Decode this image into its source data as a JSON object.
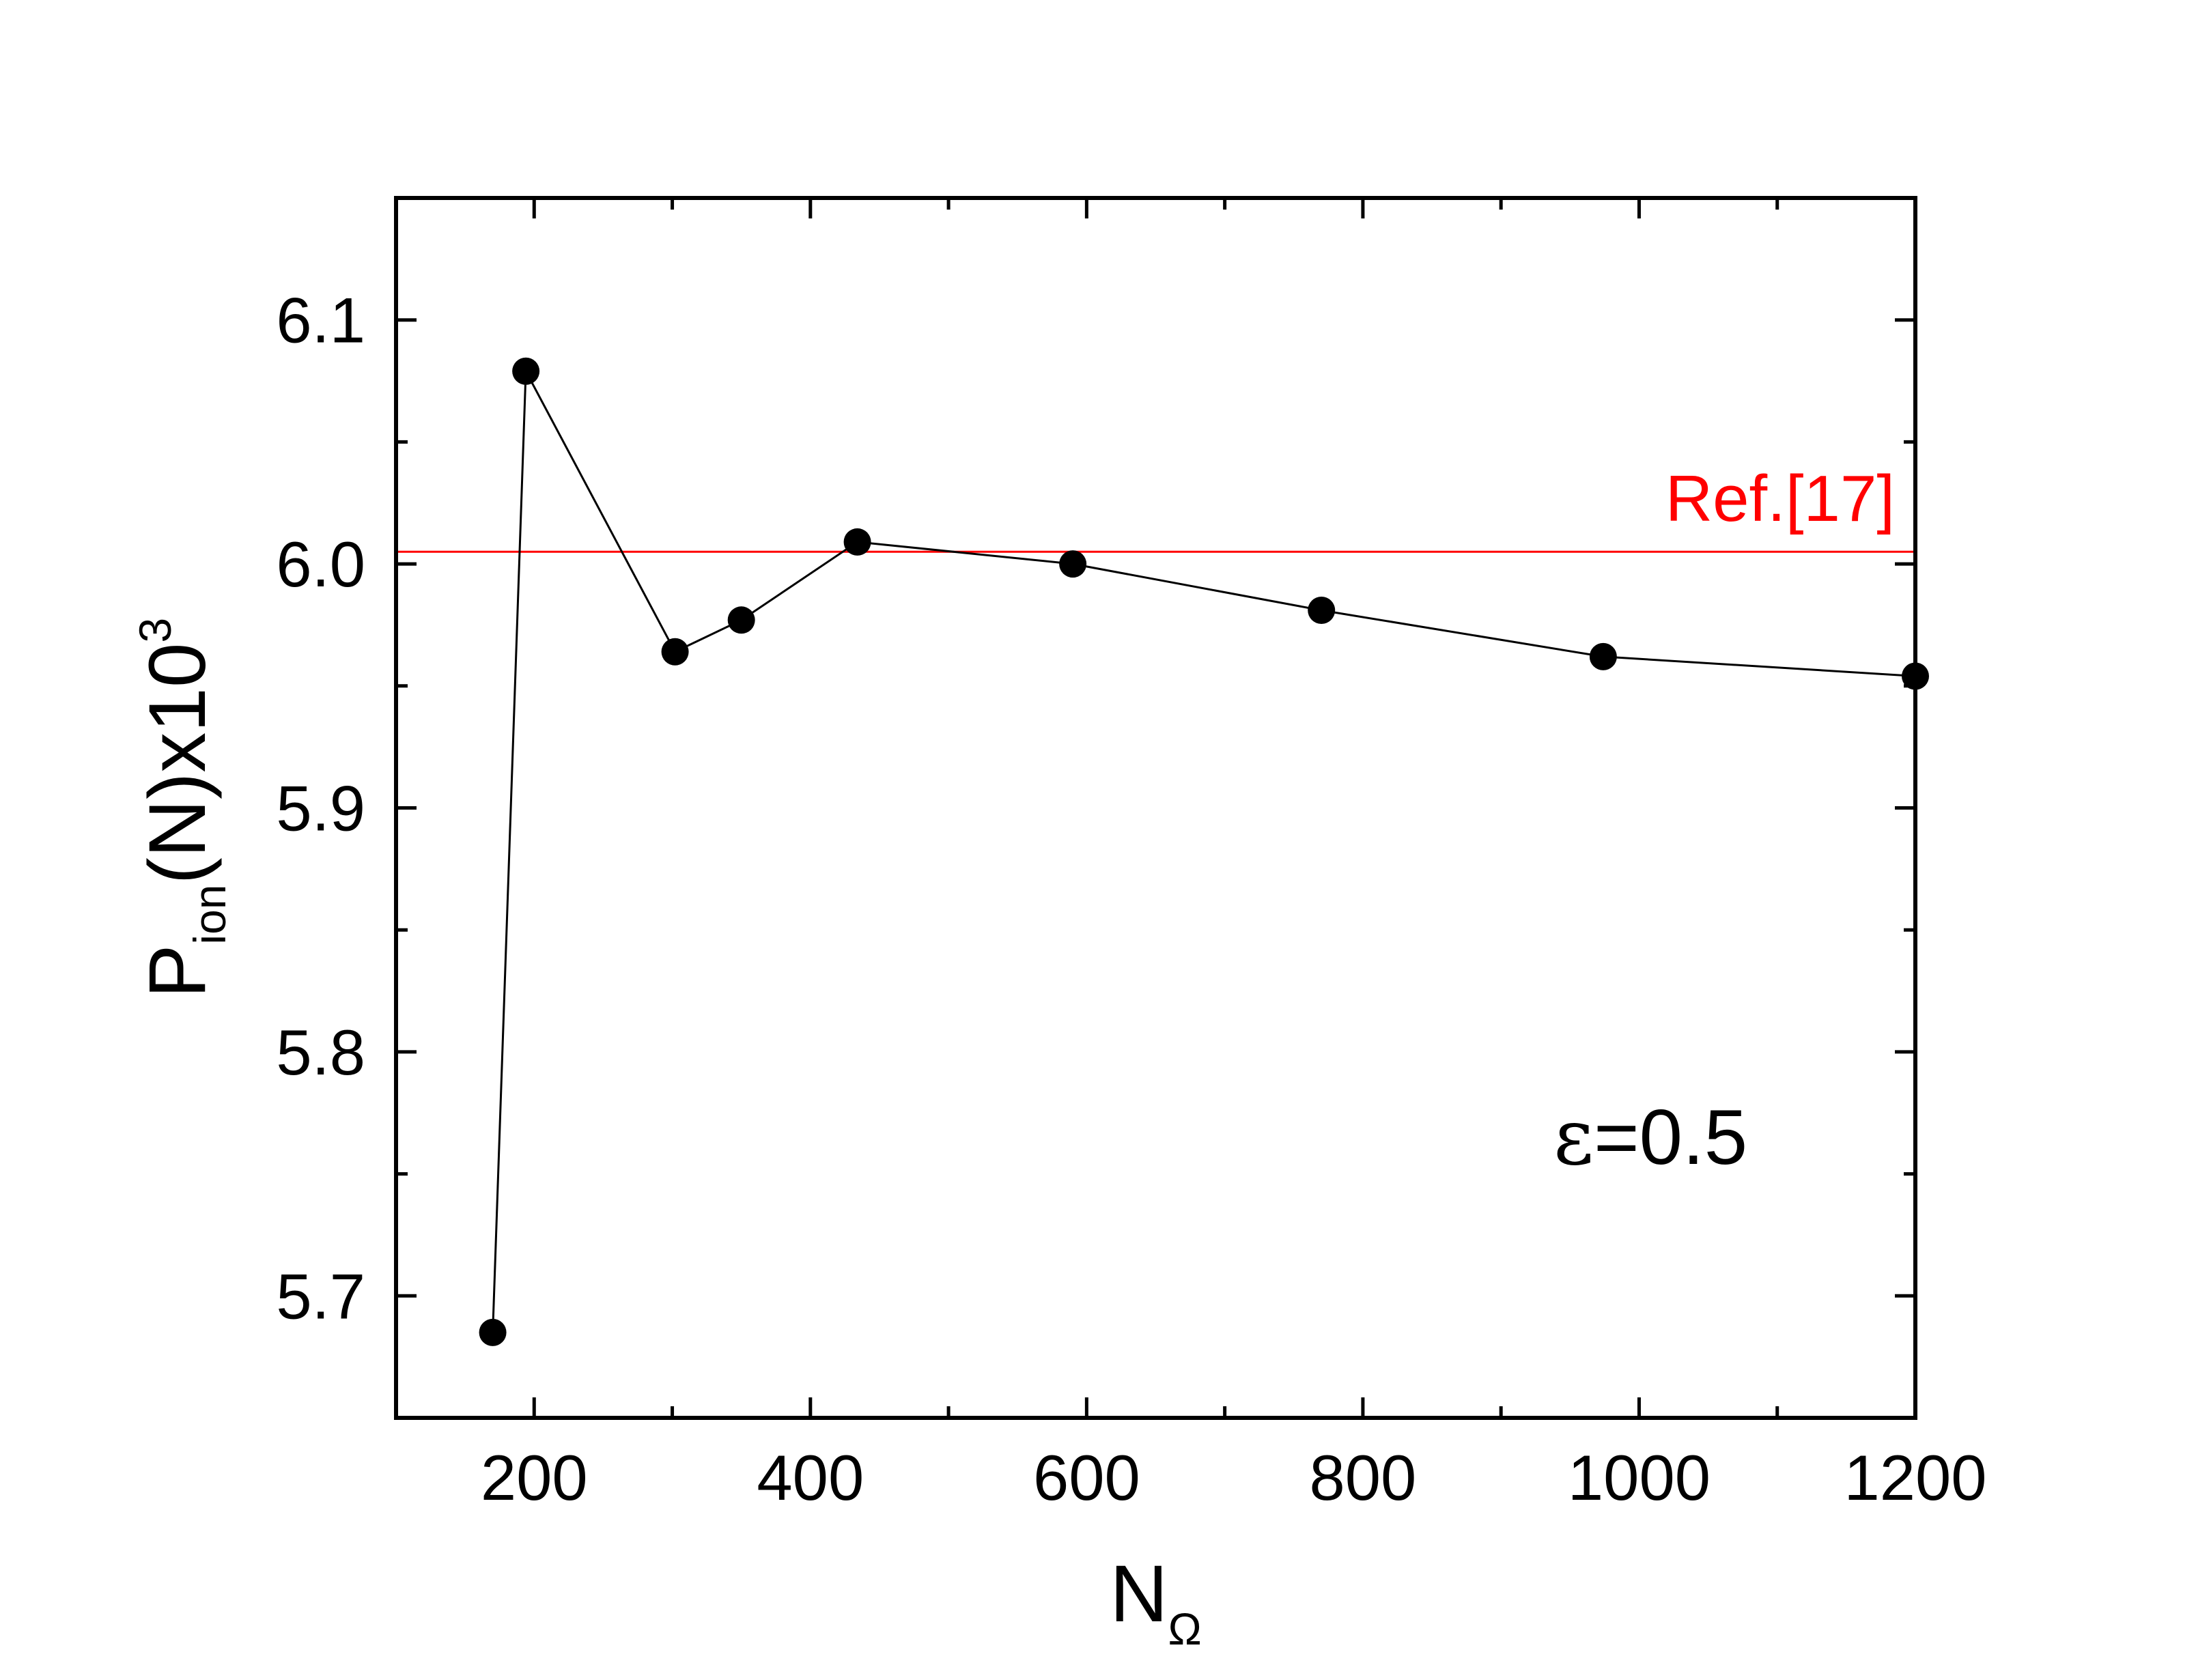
{
  "chart_data": {
    "type": "line",
    "x": [
      170,
      194,
      302,
      350,
      434,
      590,
      770,
      974,
      1200
    ],
    "series": [
      {
        "values": [
          5.685,
          6.079,
          5.964,
          5.977,
          6.009,
          6.0,
          5.981,
          5.962,
          5.954
        ],
        "color": "#000000",
        "marker": "filled-circle"
      }
    ],
    "reference_line": {
      "label": "Ref.[17]",
      "y": 6.005,
      "color": "#ff0000"
    },
    "annotation": {
      "text_symbol": "ε",
      "text_value": "=0.5"
    },
    "xlabel": {
      "main": "N",
      "sub": "Ω"
    },
    "ylabel": {
      "main": "P",
      "sub": "ion",
      "rest": "(N)x10",
      "sup": "3"
    },
    "xlim": [
      100,
      1200
    ],
    "ylim": [
      5.65,
      6.15
    ],
    "x_major_ticks": [
      200,
      400,
      600,
      800,
      1000,
      1200
    ],
    "x_tick_labels": [
      "200",
      "400",
      "600",
      "800",
      "1000",
      "1200"
    ],
    "x_minor_ticks": [
      300,
      500,
      700,
      900,
      1100
    ],
    "y_major_ticks": [
      5.7,
      5.8,
      5.9,
      6.0,
      6.1
    ],
    "y_tick_labels": [
      "5.7",
      "5.8",
      "5.9",
      "6.0",
      "6.1"
    ],
    "y_minor_ticks": [
      5.75,
      5.85,
      5.95,
      6.05
    ],
    "grid": false,
    "legend": "none"
  }
}
